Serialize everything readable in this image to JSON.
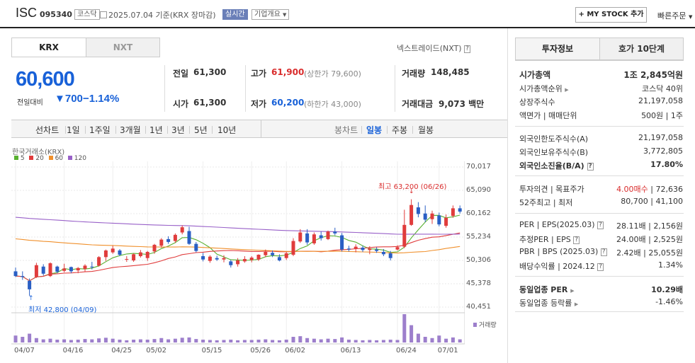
{
  "header": {
    "name": "ISC",
    "code": "095340",
    "market_tag": "코스닥",
    "date_text": "2025.07.04 기준(KRX 장마감)",
    "realtime": "실시간",
    "company_info": "기업개요",
    "mystock": "+ MY STOCK 추가",
    "quick_order": "빠른주문"
  },
  "quote": {
    "tab_krx": "KRX",
    "tab_nxt": "NXT",
    "nxt_link": "넥스트레이드(NXT)",
    "price": "60,600",
    "change_label": "전일대비",
    "change_value": "▼700",
    "change_rate": "−1.14%",
    "prev_label": "전일",
    "prev": "61,300",
    "high_label": "고가",
    "high": "61,900",
    "upper_limit": "(상한가 79,600)",
    "volume_label": "거래량",
    "volume": "148,485",
    "open_label": "시가",
    "open": "61,300",
    "low_label": "저가",
    "low": "60,200",
    "lower_limit": "(하한가 43,000)",
    "amount_label": "거래대금",
    "amount": "9,073 백만"
  },
  "periods": [
    "선차트",
    "1일",
    "1주일",
    "3개월",
    "1년",
    "3년",
    "5년",
    "10년"
  ],
  "chart_types": [
    "봉차트",
    "일봉",
    "주봉",
    "월봉"
  ],
  "chart_data": {
    "type": "candlestick",
    "source_label": "한국거래소(KRX)",
    "ma_legend": [
      {
        "name": "5",
        "color": "#58b030"
      },
      {
        "name": "20",
        "color": "#e03c3c"
      },
      {
        "name": "60",
        "color": "#f0902c"
      },
      {
        "name": "120",
        "color": "#9860c8"
      }
    ],
    "ylim": [
      40451,
      70017
    ],
    "y_ticks": [
      "70,017",
      "65,090",
      "60,162",
      "55,234",
      "50,306",
      "45,378",
      "40,451"
    ],
    "x_ticks": [
      "04/07",
      "04/16",
      "04/25",
      "05/02",
      "05/15",
      "05/26",
      "06/02",
      "06/13",
      "06/24",
      "07/01"
    ],
    "max_label": "최고 63,200 (06/26)",
    "min_label": "최저 42,800 (04/09)",
    "volume_label": "거래량",
    "candles": [
      [
        48000,
        48800,
        46800,
        47000
      ],
      [
        47000,
        48000,
        46200,
        46800
      ],
      [
        46000,
        46500,
        42800,
        44200
      ],
      [
        46800,
        49800,
        46600,
        49300
      ],
      [
        49000,
        49500,
        47100,
        47500
      ],
      [
        47000,
        49900,
        46800,
        49700
      ],
      [
        49000,
        49200,
        47600,
        47900
      ],
      [
        48100,
        49600,
        47800,
        48600
      ],
      [
        48900,
        49000,
        47600,
        48000
      ],
      [
        48200,
        48900,
        47600,
        48700
      ],
      [
        48500,
        49500,
        48000,
        49200
      ],
      [
        49000,
        50000,
        48400,
        48900
      ],
      [
        49200,
        51200,
        49000,
        51000
      ],
      [
        51000,
        52600,
        50200,
        52400
      ],
      [
        52000,
        53400,
        51700,
        52800
      ],
      [
        52400,
        52700,
        51200,
        51500
      ],
      [
        50500,
        51200,
        50000,
        50600
      ],
      [
        50300,
        51800,
        50000,
        51600
      ],
      [
        51200,
        52500,
        50900,
        52000
      ],
      [
        50800,
        52300,
        50200,
        52100
      ],
      [
        52200,
        53800,
        51700,
        53600
      ],
      [
        53400,
        55000,
        53000,
        54700
      ],
      [
        54800,
        55400,
        53800,
        54200
      ],
      [
        54400,
        56000,
        54000,
        55700
      ],
      [
        56200,
        57700,
        55800,
        57300
      ],
      [
        56500,
        57400,
        53600,
        53800
      ],
      [
        53800,
        54200,
        52000,
        52300
      ],
      [
        51200,
        51900,
        50100,
        50500
      ],
      [
        50200,
        51400,
        49800,
        51100
      ],
      [
        50800,
        51300,
        50200,
        50500
      ],
      [
        50500,
        51400,
        49900,
        50800
      ],
      [
        50100,
        50400,
        48800,
        49300
      ],
      [
        49500,
        50800,
        49000,
        50300
      ],
      [
        50100,
        51200,
        49800,
        50600
      ],
      [
        50400,
        51200,
        49900,
        50900
      ],
      [
        50500,
        51600,
        50200,
        51500
      ],
      [
        51400,
        52600,
        51000,
        52100
      ],
      [
        51900,
        52400,
        51000,
        51400
      ],
      [
        51000,
        51600,
        50100,
        50300
      ],
      [
        50800,
        52100,
        50400,
        51800
      ],
      [
        51500,
        55000,
        51200,
        54400
      ],
      [
        54300,
        56900,
        54000,
        56200
      ],
      [
        56000,
        56900,
        53600,
        54100
      ],
      [
        53900,
        56200,
        53600,
        55800
      ],
      [
        55600,
        56400,
        54500,
        55000
      ],
      [
        54800,
        56600,
        54600,
        56400
      ],
      [
        56400,
        57200,
        55600,
        56000
      ],
      [
        55600,
        56100,
        52200,
        52600
      ],
      [
        52800,
        53400,
        52200,
        52600
      ],
      [
        52700,
        53700,
        52000,
        53200
      ],
      [
        53000,
        53400,
        52100,
        52500
      ],
      [
        52500,
        53300,
        51600,
        52800
      ],
      [
        52600,
        53100,
        51900,
        52300
      ],
      [
        52100,
        52700,
        51200,
        51600
      ],
      [
        51800,
        52300,
        50300,
        50800
      ],
      [
        52600,
        53500,
        52400,
        53100
      ],
      [
        53200,
        61000,
        52900,
        57800
      ],
      [
        57800,
        63200,
        57600,
        62000
      ],
      [
        61500,
        62600,
        59400,
        60100
      ],
      [
        60200,
        61900,
        58400,
        58900
      ],
      [
        59000,
        60800,
        58000,
        60200
      ],
      [
        59800,
        60400,
        57500,
        57900
      ],
      [
        57600,
        60000,
        57200,
        59300
      ],
      [
        59700,
        61900,
        59300,
        61300
      ],
      [
        61300,
        61900,
        60200,
        60600
      ]
    ],
    "volume": [
      22,
      18,
      28,
      14,
      10,
      12,
      9,
      10,
      8,
      9,
      11,
      10,
      13,
      15,
      12,
      9,
      7,
      9,
      10,
      9,
      11,
      14,
      10,
      12,
      15,
      16,
      11,
      9,
      8,
      7,
      8,
      9,
      7,
      8,
      8,
      9,
      10,
      8,
      7,
      9,
      18,
      20,
      14,
      12,
      10,
      12,
      11,
      16,
      9,
      8,
      7,
      8,
      7,
      8,
      9,
      8,
      90,
      55,
      28,
      18,
      14,
      22,
      12,
      16,
      10
    ]
  },
  "invest": {
    "tab1": "투자정보",
    "tab2": "호가 10단계",
    "rows1": [
      {
        "k": "시가총액",
        "v": "1조 2,845억원"
      },
      {
        "k": "시가총액순위",
        "v": "코스닥 40위"
      },
      {
        "k": "상장주식수",
        "v": "21,197,058"
      },
      {
        "k": "액면가 | 매매단위",
        "v": "500원 | 1주"
      }
    ],
    "rows2": [
      {
        "k": "외국인한도주식수(A)",
        "v": "21,197,058"
      },
      {
        "k": "외국인보유주식수(B)",
        "v": "3,772,805"
      },
      {
        "k": "외국인소진율(B/A)",
        "v": "17.80%"
      }
    ],
    "rows3": [
      {
        "k": "투자의견 | 목표주가",
        "v1": "4.00매수",
        "v2": "72,636"
      },
      {
        "k": "52주최고 | 최저",
        "v1": "80,700",
        "v2": "41,100"
      }
    ],
    "rows4": [
      {
        "k": "PER | EPS(2025.03)",
        "v1": "28.11배",
        "v2": "2,156원"
      },
      {
        "k": "추정PER | EPS",
        "v1": "24.00배",
        "v2": "2,525원"
      },
      {
        "k": "PBR | BPS (2025.03)",
        "v1": "2.42배",
        "v2": "25,055원"
      },
      {
        "k": "배당수익률 | 2024.12",
        "v1": "",
        "v2": "1.34%"
      }
    ],
    "rows5": [
      {
        "k": "동일업종 PER",
        "v": "10.29배"
      },
      {
        "k": "동일업종 등락률",
        "v": "-1.46%"
      }
    ]
  }
}
